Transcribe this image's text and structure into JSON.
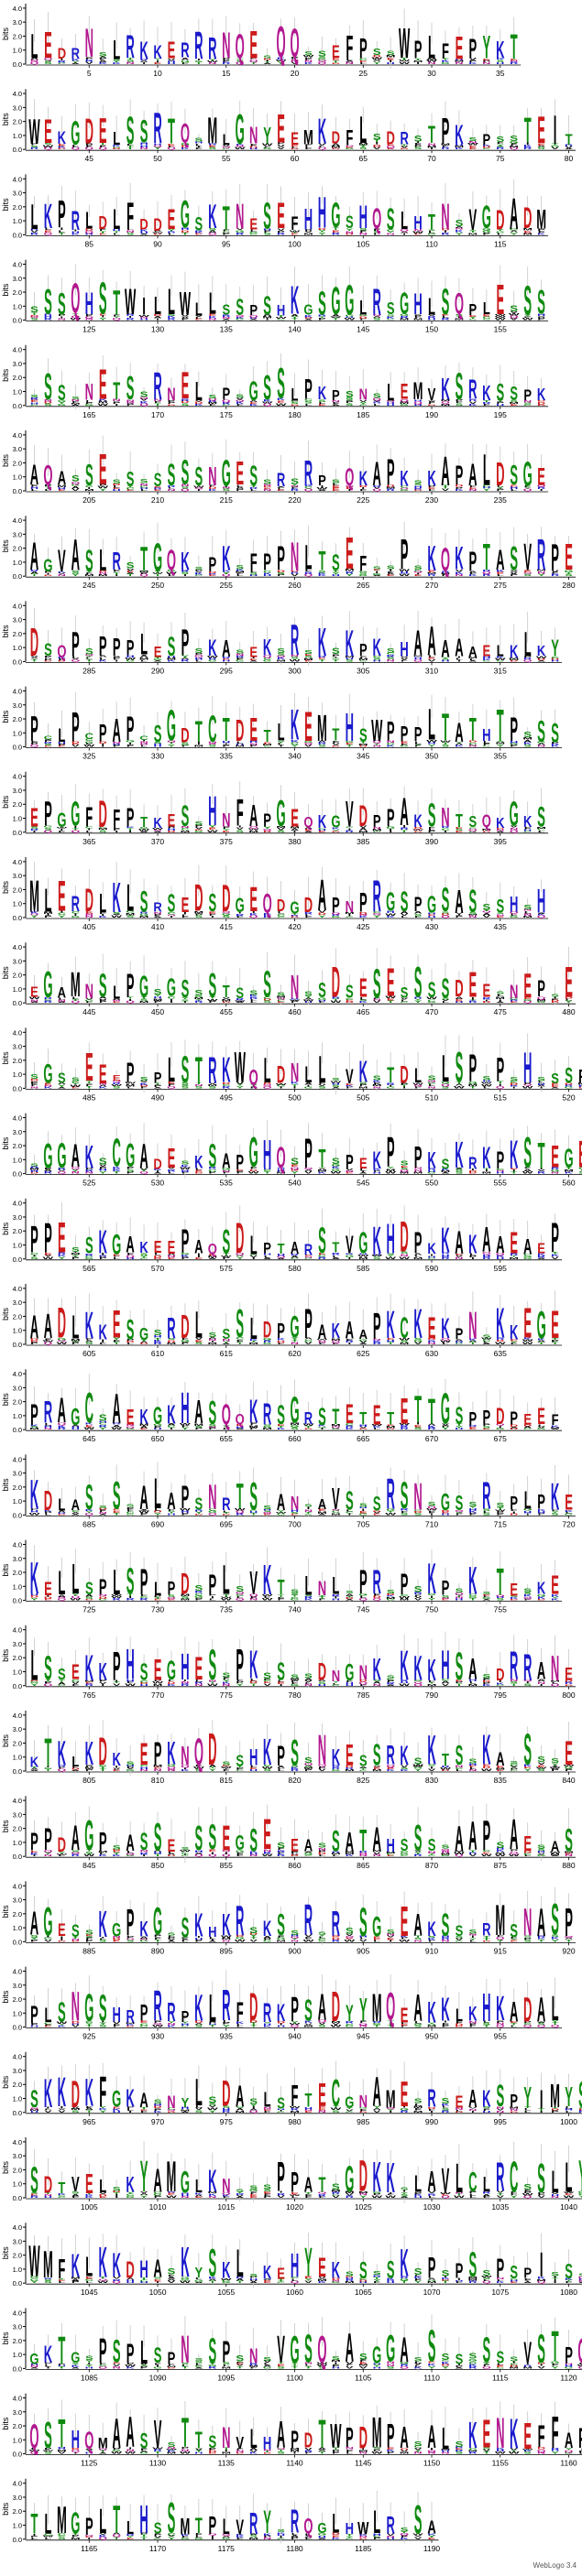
{
  "chart_data": {
    "type": "sequence-logo",
    "ylabel": "bits",
    "y_ticks": [
      "0.0",
      "1.0",
      "2.0",
      "3.0",
      "4.0"
    ],
    "ylim": [
      0,
      4.32
    ],
    "positions_per_row": 40,
    "first_position": 1,
    "last_position": 1194,
    "x_tick_step": 5,
    "credit": "WebLogo 3.4",
    "colors": {
      "hydrophobic": "#000000",
      "polar": "#0f8a0f",
      "basic": "#1a1acc",
      "acidic": "#cc1a1a",
      "amide": "#b2188f",
      "error_bar": "#c8c8c8"
    },
    "rows": [
      "LEDRNsLRKKERRRNQEsQQssEFPssWPLFEPYKT",
      "WEKGDELSSRTQsMLGNYEEMKDFLsDRsTPKsPssTEIT",
      "LKPRLDLFDDEGSKTNESEFHHGSHQSLHTNsVGDADM",
      "sSSQHSTWILLWLLSSPSHKGSGGLRSGHLSQPLEsSS",
      "sSSsNETSsRNELsPsGSSLPKPsNsLEMVKSRKSSPK",
      "AQAsSEsSsSSSSNGESsRsRPsQKAPKsKAPALDSGE",
      "AGVASLRsTGQKsPKsFPPNLTSEFssPsKQKPTASVRPE",
      "DSQPsPPPLESPsKAsEKsRsKsKPKsHAAAAAELKLKY",
      "PcLPcPAPcSGDTCTDETLKEMTHSWPPPLTATHTPsSS",
      "EPGGFDFPTKESsHNFAPGEQKGVDPPAKSNTSQKGKS",
      "MLERDLKLSRSEDSDGEQDGDAPNPRGSPGSASsSHsH",
      "EGAMNSLPGsGSsSTSsSsNsSDSESESSSSDEEsNEPsE",
      "sGSsEEePsPLSTRKWQLDNLLsVKsTDLsLSPsPsHsSSPS",
      "sGGAKsCGADEsKSAPGHQsPTsPEKPsPKSKRKPKSTEGE",
      "PPEsSKGAKEEPAQSDLPTARSTVGKHDPKKAKAAEAEP",
      "AADLKKESGsRDLsSSLDPGPAKAAPKCKEKPNsKKEGE",
      "PRAGCsAEKGKHASQQKRSGRSTETETETTGSPPDPEEF",
      "KDLASsSsALAPSNRTSsANsAVSsSRSNsGSsRsPLPKE",
      "KELLSPLSPLPDsPLsVKTsLNLsPRsPsKPsKsTEsKE",
      "LSSEKKPHSEGHESsPKsSssDNGNKsKKKHSAsDRRANE",
      "KTKLKDKsEPKNQDsSHKPSsNKESSRKsKTSsKAsSssE",
      "PPDAGPsASSEsSSEGSEsEAsSATAHSSSsAAPsAEsAS",
      "AGESsKGPKGsSKHKRsKSsRsRsSGsEAKSSsRMSNASP",
      "PLSNGSHRPRRPKLRFDRKPSADYYMQEAKKLKHKADAL",
      "SKKDKFGKAsNYLsDAsLSFTECGNAMEsRsEAKSPYIMYSE",
      "SDTVELsKYAMGLKNsssPPATsGDKKsLAVLCLRCsSLLYLR",
      "WMFKLKKDHAsKYSKLsKEHYEKsSsSKsPsPSsPSPIsSsGS",
      "GKTGsPSPLSPNsSPsNsVGSQsAsGGAsSsSsSSsVSTPQR",
      "QSTHQMAASVsTTSNVLHAPDTWPDMPAsALsKENKEFFAPLD",
      "TLMGPLTLHSSMTPLVRYsRQGLHWLRsSA"
    ]
  }
}
